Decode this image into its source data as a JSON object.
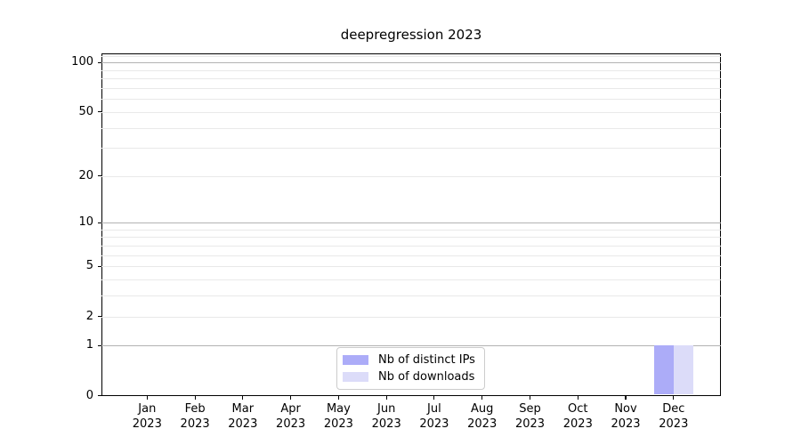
{
  "title": "deepregression 2023",
  "chart_data": {
    "type": "bar",
    "title": "deepregression 2023",
    "categories": [
      "Jan",
      "Feb",
      "Mar",
      "Apr",
      "May",
      "Jun",
      "Jul",
      "Aug",
      "Sep",
      "Oct",
      "Nov",
      "Dec"
    ],
    "category_year": "2023",
    "series": [
      {
        "name": "Nb of distinct IPs",
        "color": "#acacf8",
        "values": [
          0,
          0,
          0,
          0,
          0,
          0,
          0,
          0,
          0,
          0,
          0,
          1
        ]
      },
      {
        "name": "Nb of downloads",
        "color": "#dcdcf9",
        "values": [
          0,
          0,
          0,
          0,
          0,
          0,
          0,
          0,
          0,
          0,
          0,
          1
        ]
      }
    ],
    "yscale": "log1p",
    "ylim": [
      0,
      114.6
    ],
    "y_ticks": [
      0,
      1,
      2,
      5,
      10,
      20,
      50,
      100
    ],
    "y_major_gridlines": [
      1,
      10,
      100
    ],
    "y_minor_gridlines": [
      2,
      3,
      4,
      5,
      6,
      7,
      8,
      9,
      20,
      30,
      40,
      50,
      60,
      70,
      80,
      90,
      110
    ],
    "grid": true,
    "legend_position": "lower center",
    "colors": {
      "major_grid": "#b3b3b3",
      "minor_grid": "#e9e9e9",
      "axis": "#000000",
      "text": "#000000",
      "legend_border": "#cccccc"
    }
  }
}
